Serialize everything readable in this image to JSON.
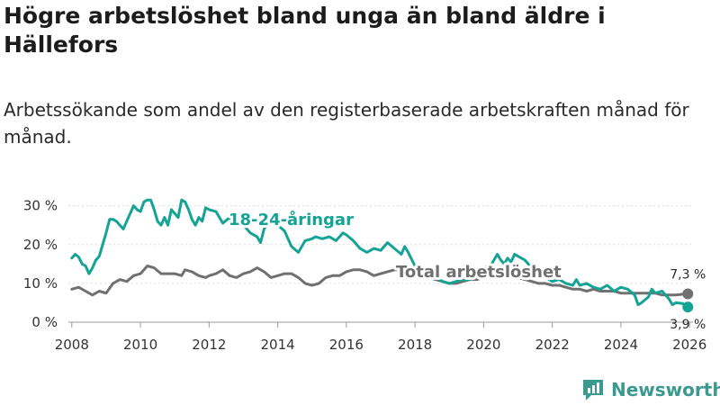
{
  "chart_data": {
    "type": "line",
    "title": "Högre arbetslöshet bland unga än bland äldre i Hällefors",
    "subtitle": "Arbetssökande som andel av den registerbaserade arbetskraften månad för månad.",
    "ylim": [
      0,
      32
    ],
    "xlim": [
      2007.9,
      2026.1
    ],
    "y_ticks": [
      {
        "value": 0,
        "label": "0 %"
      },
      {
        "value": 10,
        "label": "10 %"
      },
      {
        "value": 20,
        "label": "20 %"
      },
      {
        "value": 30,
        "label": "30 %"
      }
    ],
    "x_ticks": [
      {
        "value": 2008,
        "label": "2008"
      },
      {
        "value": 2010,
        "label": "2010"
      },
      {
        "value": 2012,
        "label": "2012"
      },
      {
        "value": 2014,
        "label": "2014"
      },
      {
        "value": 2016,
        "label": "2016"
      },
      {
        "value": 2018,
        "label": "2018"
      },
      {
        "value": 2020,
        "label": "2020"
      },
      {
        "value": 2022,
        "label": "2022"
      },
      {
        "value": 2024,
        "label": "2024"
      },
      {
        "value": 2026,
        "label": "2026"
      }
    ],
    "series": [
      {
        "name": "18-24-åringar",
        "color": "#14a394",
        "end_label": "3,9 %",
        "points": [
          [
            2008.0,
            16.5
          ],
          [
            2008.1,
            17.5
          ],
          [
            2008.2,
            16.8
          ],
          [
            2008.3,
            15.0
          ],
          [
            2008.4,
            14.5
          ],
          [
            2008.5,
            12.5
          ],
          [
            2008.6,
            14.0
          ],
          [
            2008.7,
            16.0
          ],
          [
            2008.8,
            17.0
          ],
          [
            2008.9,
            20.0
          ],
          [
            2009.0,
            23.0
          ],
          [
            2009.1,
            26.5
          ],
          [
            2009.2,
            26.5
          ],
          [
            2009.3,
            26.0
          ],
          [
            2009.4,
            25.0
          ],
          [
            2009.5,
            24.0
          ],
          [
            2009.6,
            26.0
          ],
          [
            2009.7,
            28.0
          ],
          [
            2009.8,
            30.0
          ],
          [
            2009.9,
            29.0
          ],
          [
            2010.0,
            28.5
          ],
          [
            2010.1,
            31.0
          ],
          [
            2010.2,
            31.5
          ],
          [
            2010.3,
            31.5
          ],
          [
            2010.4,
            29.0
          ],
          [
            2010.5,
            26.0
          ],
          [
            2010.6,
            25.0
          ],
          [
            2010.7,
            27.0
          ],
          [
            2010.8,
            25.0
          ],
          [
            2010.9,
            29.0
          ],
          [
            2011.0,
            28.0
          ],
          [
            2011.1,
            27.0
          ],
          [
            2011.2,
            31.5
          ],
          [
            2011.3,
            31.0
          ],
          [
            2011.4,
            29.0
          ],
          [
            2011.5,
            26.5
          ],
          [
            2011.6,
            25.0
          ],
          [
            2011.7,
            27.0
          ],
          [
            2011.8,
            26.0
          ],
          [
            2011.9,
            29.5
          ],
          [
            2012.0,
            29.0
          ],
          [
            2012.2,
            28.5
          ],
          [
            2012.4,
            25.5
          ],
          [
            2012.6,
            27.0
          ],
          [
            2012.8,
            25.5
          ],
          [
            2013.0,
            25.0
          ],
          [
            2013.2,
            23.0
          ],
          [
            2013.4,
            22.0
          ],
          [
            2013.5,
            20.5
          ],
          [
            2013.6,
            24.0
          ],
          [
            2013.8,
            27.0
          ],
          [
            2014.0,
            25.0
          ],
          [
            2014.2,
            23.5
          ],
          [
            2014.4,
            19.5
          ],
          [
            2014.6,
            18.0
          ],
          [
            2014.8,
            21.0
          ],
          [
            2015.0,
            21.5
          ],
          [
            2015.1,
            22.0
          ],
          [
            2015.3,
            21.5
          ],
          [
            2015.5,
            22.0
          ],
          [
            2015.7,
            21.0
          ],
          [
            2015.9,
            23.0
          ],
          [
            2016.0,
            22.5
          ],
          [
            2016.2,
            21.0
          ],
          [
            2016.4,
            19.0
          ],
          [
            2016.6,
            18.0
          ],
          [
            2016.8,
            19.0
          ],
          [
            2017.0,
            18.5
          ],
          [
            2017.2,
            20.5
          ],
          [
            2017.4,
            19.0
          ],
          [
            2017.6,
            17.5
          ],
          [
            2017.7,
            19.5
          ],
          [
            2017.8,
            18.0
          ],
          [
            2018.0,
            14.5
          ],
          [
            2018.2,
            13.5
          ],
          [
            2018.4,
            12.5
          ],
          [
            2018.6,
            11.5
          ],
          [
            2018.8,
            10.5
          ],
          [
            2019.0,
            10.0
          ],
          [
            2019.2,
            10.5
          ],
          [
            2019.4,
            11.0
          ],
          [
            2019.6,
            11.0
          ],
          [
            2019.8,
            12.5
          ],
          [
            2020.0,
            14.0
          ],
          [
            2020.2,
            14.5
          ],
          [
            2020.3,
            16.0
          ],
          [
            2020.4,
            17.5
          ],
          [
            2020.5,
            16.0
          ],
          [
            2020.6,
            15.0
          ],
          [
            2020.7,
            16.5
          ],
          [
            2020.8,
            15.5
          ],
          [
            2020.9,
            17.5
          ],
          [
            2021.0,
            17.0
          ],
          [
            2021.2,
            16.0
          ],
          [
            2021.4,
            14.0
          ],
          [
            2021.6,
            12.5
          ],
          [
            2021.8,
            11.5
          ],
          [
            2022.0,
            10.5
          ],
          [
            2022.2,
            11.0
          ],
          [
            2022.4,
            10.0
          ],
          [
            2022.6,
            9.5
          ],
          [
            2022.7,
            11.0
          ],
          [
            2022.8,
            9.5
          ],
          [
            2023.0,
            10.0
          ],
          [
            2023.2,
            9.0
          ],
          [
            2023.4,
            8.5
          ],
          [
            2023.6,
            9.5
          ],
          [
            2023.8,
            8.0
          ],
          [
            2024.0,
            9.0
          ],
          [
            2024.2,
            8.5
          ],
          [
            2024.4,
            7.0
          ],
          [
            2024.5,
            4.5
          ],
          [
            2024.6,
            5.0
          ],
          [
            2024.8,
            6.5
          ],
          [
            2024.9,
            8.5
          ],
          [
            2025.0,
            7.5
          ],
          [
            2025.2,
            8.0
          ],
          [
            2025.4,
            6.0
          ],
          [
            2025.5,
            4.5
          ],
          [
            2025.6,
            5.0
          ],
          [
            2025.8,
            4.8
          ],
          [
            2025.95,
            3.9
          ]
        ]
      },
      {
        "name": "Total arbetslöshet",
        "color": "#707070",
        "end_label": "7,3 %",
        "points": [
          [
            2008.0,
            8.5
          ],
          [
            2008.2,
            9.0
          ],
          [
            2008.4,
            8.0
          ],
          [
            2008.6,
            7.0
          ],
          [
            2008.8,
            8.0
          ],
          [
            2009.0,
            7.5
          ],
          [
            2009.2,
            10.0
          ],
          [
            2009.4,
            11.0
          ],
          [
            2009.6,
            10.5
          ],
          [
            2009.8,
            12.0
          ],
          [
            2010.0,
            12.5
          ],
          [
            2010.2,
            14.5
          ],
          [
            2010.4,
            14.0
          ],
          [
            2010.6,
            12.5
          ],
          [
            2010.8,
            12.5
          ],
          [
            2011.0,
            12.5
          ],
          [
            2011.2,
            12.0
          ],
          [
            2011.3,
            13.5
          ],
          [
            2011.5,
            13.0
          ],
          [
            2011.7,
            12.0
          ],
          [
            2011.9,
            11.5
          ],
          [
            2012.0,
            12.0
          ],
          [
            2012.2,
            12.5
          ],
          [
            2012.4,
            13.5
          ],
          [
            2012.6,
            12.0
          ],
          [
            2012.8,
            11.5
          ],
          [
            2013.0,
            12.5
          ],
          [
            2013.2,
            13.0
          ],
          [
            2013.4,
            14.0
          ],
          [
            2013.6,
            13.0
          ],
          [
            2013.8,
            11.5
          ],
          [
            2014.0,
            12.0
          ],
          [
            2014.2,
            12.5
          ],
          [
            2014.4,
            12.5
          ],
          [
            2014.6,
            11.5
          ],
          [
            2014.8,
            10.0
          ],
          [
            2015.0,
            9.5
          ],
          [
            2015.2,
            10.0
          ],
          [
            2015.4,
            11.5
          ],
          [
            2015.6,
            12.0
          ],
          [
            2015.8,
            12.0
          ],
          [
            2016.0,
            13.0
          ],
          [
            2016.2,
            13.5
          ],
          [
            2016.4,
            13.5
          ],
          [
            2016.6,
            13.0
          ],
          [
            2016.8,
            12.0
          ],
          [
            2017.0,
            12.5
          ],
          [
            2017.2,
            13.0
          ],
          [
            2017.4,
            13.5
          ],
          [
            2017.6,
            13.5
          ],
          [
            2017.8,
            13.0
          ],
          [
            2018.0,
            12.5
          ],
          [
            2018.2,
            12.0
          ],
          [
            2018.4,
            11.5
          ],
          [
            2018.6,
            11.0
          ],
          [
            2018.8,
            10.5
          ],
          [
            2019.0,
            10.0
          ],
          [
            2019.2,
            10.0
          ],
          [
            2019.4,
            10.5
          ],
          [
            2019.6,
            11.0
          ],
          [
            2019.8,
            11.0
          ],
          [
            2020.0,
            11.5
          ],
          [
            2020.2,
            12.0
          ],
          [
            2020.4,
            12.5
          ],
          [
            2020.6,
            12.0
          ],
          [
            2020.8,
            11.5
          ],
          [
            2021.0,
            11.5
          ],
          [
            2021.2,
            11.0
          ],
          [
            2021.4,
            10.5
          ],
          [
            2021.6,
            10.0
          ],
          [
            2021.8,
            10.0
          ],
          [
            2022.0,
            9.5
          ],
          [
            2022.2,
            9.5
          ],
          [
            2022.4,
            9.0
          ],
          [
            2022.6,
            8.5
          ],
          [
            2022.8,
            8.5
          ],
          [
            2023.0,
            8.0
          ],
          [
            2023.2,
            8.5
          ],
          [
            2023.4,
            8.0
          ],
          [
            2023.6,
            8.0
          ],
          [
            2023.8,
            8.0
          ],
          [
            2024.0,
            7.5
          ],
          [
            2024.2,
            7.5
          ],
          [
            2024.4,
            7.5
          ],
          [
            2024.6,
            7.5
          ],
          [
            2024.8,
            7.5
          ],
          [
            2025.0,
            7.5
          ],
          [
            2025.2,
            7.0
          ],
          [
            2025.4,
            7.0
          ],
          [
            2025.6,
            7.0
          ],
          [
            2025.8,
            7.2
          ],
          [
            2025.95,
            7.3
          ]
        ]
      }
    ],
    "annotations": [
      {
        "text": "18-24-åringar",
        "series": 0
      },
      {
        "text": "Total arbetslöshet",
        "series": 1
      }
    ]
  },
  "brand": {
    "name": "Newsworthy",
    "icon": "newsworthy-logo-icon",
    "color": "#3a9a8f"
  }
}
